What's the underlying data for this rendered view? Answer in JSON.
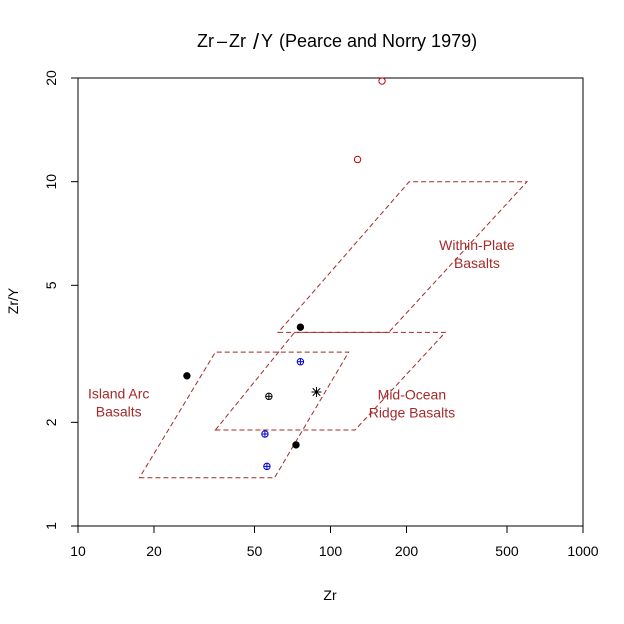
{
  "chart_data": {
    "type": "scatter",
    "title": {
      "parts": [
        "Zr",
        "–",
        "Zr",
        "/",
        "Y",
        "(Pearce and Norry 1979)"
      ]
    },
    "xlabel": "Zr",
    "ylabel": "Zr/Y",
    "xscale": "log",
    "yscale": "log",
    "xlim": [
      10,
      1000
    ],
    "ylim": [
      1,
      20
    ],
    "xticks": [
      10,
      20,
      50,
      100,
      200,
      500,
      1000
    ],
    "xtick_labels": [
      "10",
      "20",
      "50",
      "100",
      "200",
      "500",
      "1000"
    ],
    "yticks": [
      1,
      2,
      5,
      10,
      20
    ],
    "ytick_labels": [
      "1",
      "2",
      "5",
      "10",
      "20"
    ],
    "grid": false,
    "region_color": "#a52a2a",
    "regions": [
      {
        "name": "island-arc",
        "label_lines": [
          "Island Arc",
          "Basalts"
        ],
        "label_anchor": [
          14.5,
          2.3
        ],
        "polygon": [
          [
            17.5,
            1.38
          ],
          [
            60,
            1.38
          ],
          [
            118,
            3.2
          ],
          [
            35,
            3.2
          ]
        ]
      },
      {
        "name": "mid-ocean-ridge",
        "label_lines": [
          "Mid-Ocean",
          "Ridge Basalts"
        ],
        "label_anchor": [
          210,
          2.28
        ],
        "polygon": [
          [
            35,
            1.9
          ],
          [
            125,
            1.9
          ],
          [
            285,
            3.65
          ],
          [
            72,
            3.65
          ]
        ]
      },
      {
        "name": "within-plate",
        "label_lines": [
          "Within-Plate",
          "Basalts"
        ],
        "label_anchor": [
          380,
          6.2
        ],
        "polygon": [
          [
            62,
            3.65
          ],
          [
            170,
            3.65
          ],
          [
            600,
            10
          ],
          [
            205,
            10
          ]
        ]
      }
    ],
    "points": [
      {
        "x": 27,
        "y": 2.73,
        "symbol": "filled-circle",
        "color": "#000000"
      },
      {
        "x": 76,
        "y": 3.78,
        "symbol": "filled-circle",
        "color": "#000000"
      },
      {
        "x": 73,
        "y": 1.72,
        "symbol": "filled-circle",
        "color": "#000000"
      },
      {
        "x": 57,
        "y": 2.38,
        "symbol": "circle-plus",
        "color": "#000000"
      },
      {
        "x": 76,
        "y": 3.0,
        "symbol": "circle-plus",
        "color": "#0000cc"
      },
      {
        "x": 55,
        "y": 1.85,
        "symbol": "circle-plus",
        "color": "#0000cc"
      },
      {
        "x": 56,
        "y": 1.49,
        "symbol": "circle-plus",
        "color": "#0000cc"
      },
      {
        "x": 88,
        "y": 2.45,
        "symbol": "asterisk",
        "color": "#000000"
      },
      {
        "x": 128,
        "y": 11.6,
        "symbol": "open-circle",
        "color": "#cc0000"
      },
      {
        "x": 160,
        "y": 19.6,
        "symbol": "open-circle",
        "color": "#cc0000"
      }
    ]
  }
}
